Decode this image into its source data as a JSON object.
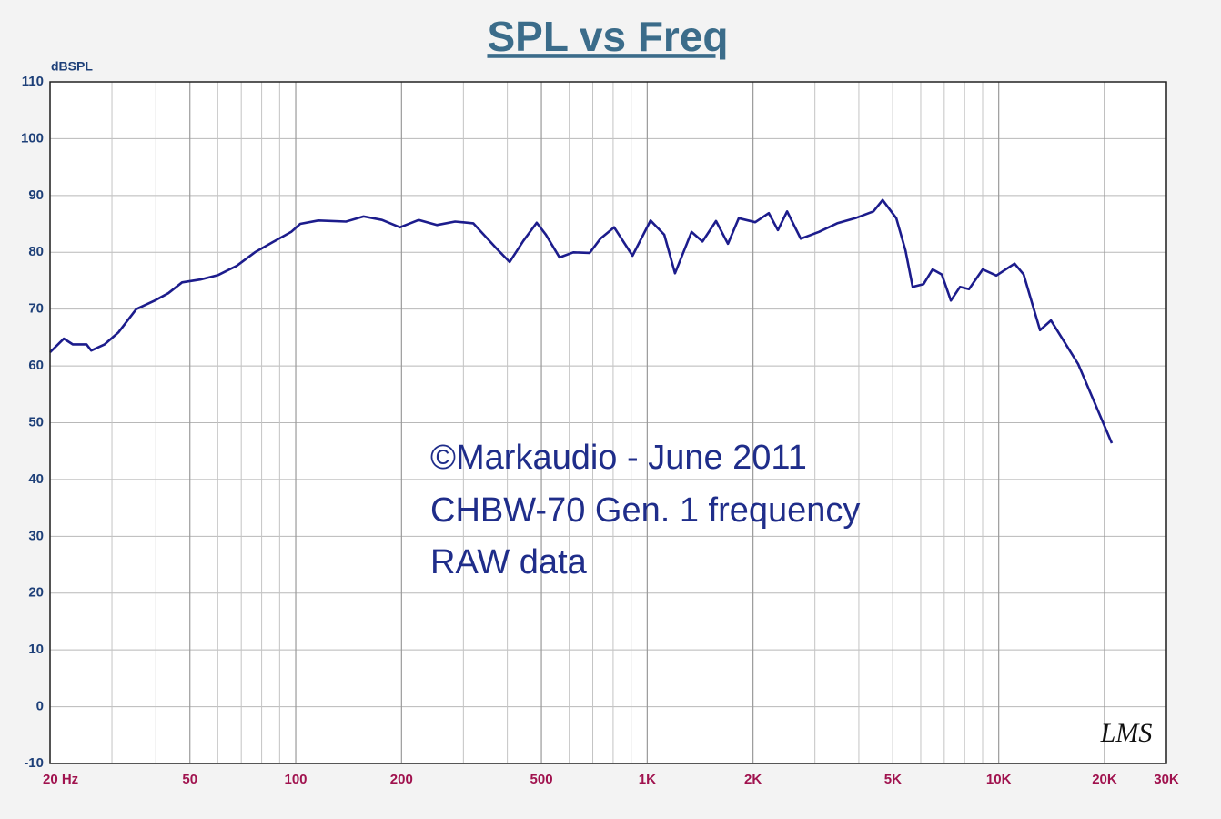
{
  "chart_data": {
    "type": "line",
    "title": "SPL vs Freq",
    "y_label": "dBSPL",
    "annotations": [
      "©Markaudio - June 2011",
      "CHBW-70 Gen. 1 frequency",
      "RAW data"
    ],
    "logo": "LMS",
    "xscale": "log",
    "grid": true,
    "xlim": [
      20,
      30000
    ],
    "ylim": [
      -10,
      110
    ],
    "xticks": [
      {
        "value": 20,
        "label": "20 Hz"
      },
      50,
      100,
      200,
      500,
      {
        "value": 1000,
        "label": "1K"
      },
      {
        "value": 2000,
        "label": "2K"
      },
      {
        "value": 5000,
        "label": "5K"
      },
      {
        "value": 10000,
        "label": "10K"
      },
      {
        "value": 20000,
        "label": "20K"
      },
      {
        "value": 30000,
        "label": "30K"
      }
    ],
    "xminorticks": [
      30,
      40,
      60,
      70,
      80,
      90,
      300,
      400,
      600,
      700,
      800,
      900,
      3000,
      4000,
      6000,
      7000,
      8000,
      9000
    ],
    "yticks": [
      -10,
      0,
      10,
      20,
      30,
      40,
      50,
      60,
      70,
      80,
      90,
      100,
      110
    ],
    "x": [
      20,
      21.9,
      23.2,
      25.4,
      26.2,
      28.6,
      31.3,
      35.2,
      39.7,
      43.4,
      47.5,
      53.5,
      60.2,
      67.9,
      76.5,
      86.1,
      97.1,
      103,
      116,
      139,
      156,
      176,
      198,
      224,
      252,
      284,
      320,
      371,
      406,
      444,
      485,
      515,
      563,
      616,
      686,
      736,
      805,
      908,
      1022,
      1118,
      1200,
      1337,
      1436,
      1570,
      1697,
      1822,
      2029,
      2218,
      2354,
      2500,
      2734,
      3080,
      3470,
      3908,
      4402,
      4674,
      5112,
      5426,
      5690,
      6112,
      6486,
      6888,
      7308,
      7758,
      8232,
      9004,
      9848,
      11092,
      11774,
      13106,
      14082,
      16842,
      20986
    ],
    "series": [
      {
        "name": "SPL",
        "color": "#1c1c8c",
        "values": [
          62.4,
          64.8,
          63.8,
          63.8,
          62.7,
          63.8,
          65.9,
          70,
          71.5,
          72.8,
          74.7,
          75.2,
          76,
          77.6,
          80,
          81.8,
          83.6,
          85,
          85.6,
          85.4,
          86.3,
          85.7,
          84.4,
          85.7,
          84.8,
          85.4,
          85.1,
          80.8,
          78.3,
          82,
          85.2,
          83.1,
          79.1,
          80,
          79.9,
          82.4,
          84.4,
          79.4,
          85.6,
          83.1,
          76.3,
          83.6,
          81.9,
          85.5,
          81.5,
          86,
          85.3,
          86.9,
          83.9,
          87.2,
          82.4,
          83.6,
          85.1,
          86,
          87.2,
          89.2,
          86,
          80.4,
          73.9,
          74.4,
          77,
          76.1,
          71.5,
          73.9,
          73.5,
          77,
          75.9,
          78,
          76.1,
          66.3,
          68,
          60.3,
          46.4
        ]
      }
    ]
  }
}
